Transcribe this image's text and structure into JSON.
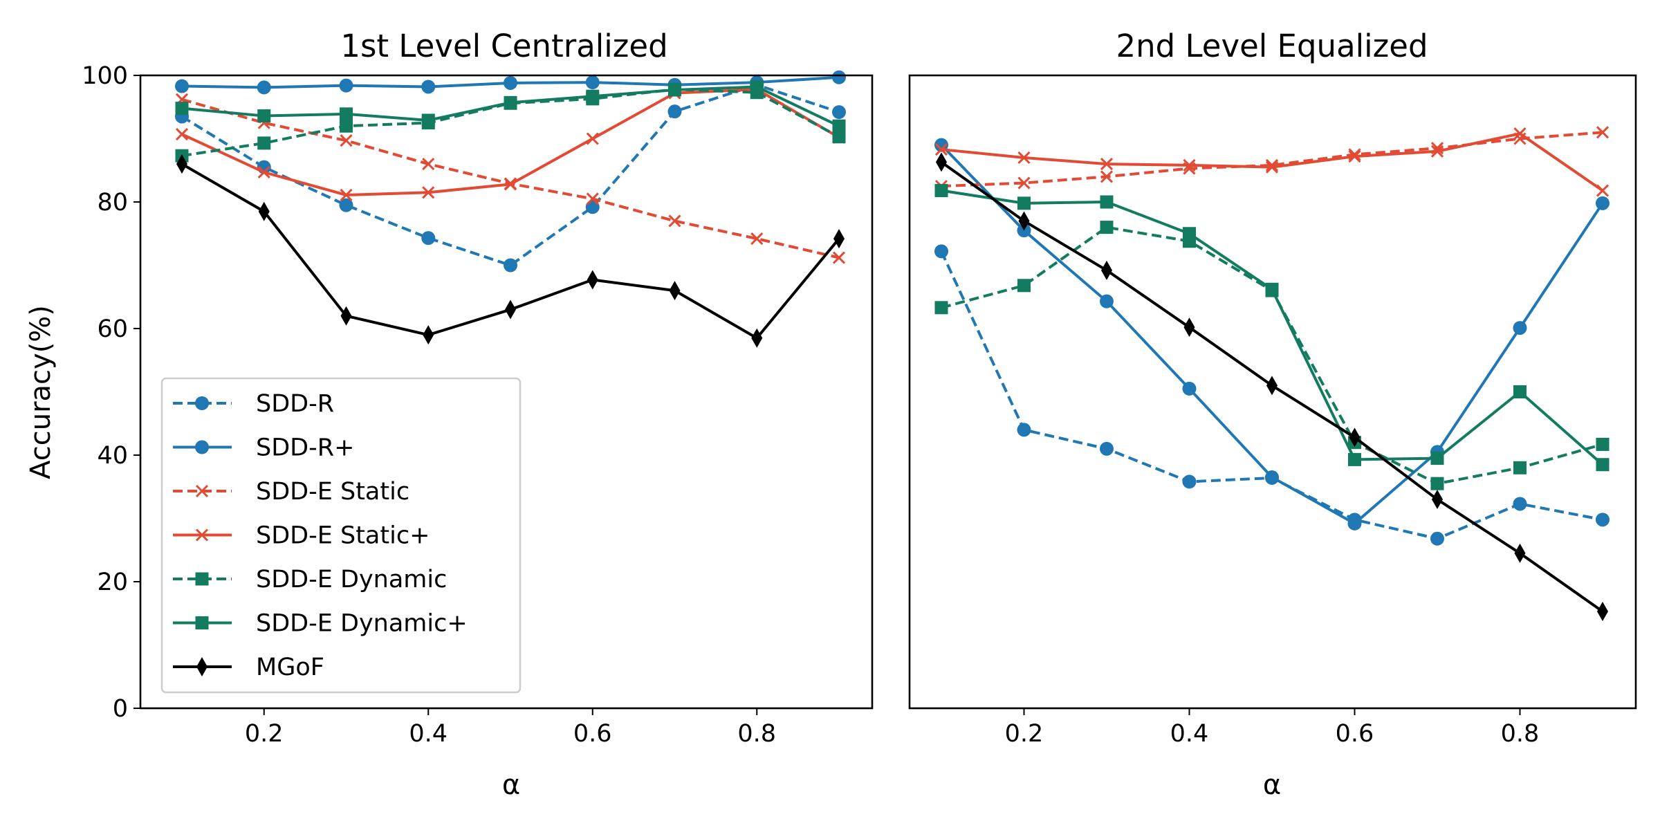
{
  "chart_data": [
    {
      "type": "line",
      "title": "1st Level Centralized",
      "xlabel": "α",
      "ylabel": "Accuracy(%)",
      "x": [
        0.1,
        0.2,
        0.3,
        0.4,
        0.5,
        0.6,
        0.7,
        0.8,
        0.9
      ],
      "xticks": [
        "0.2",
        "0.4",
        "0.6",
        "0.8"
      ],
      "yticks": [
        "0",
        "20",
        "40",
        "60",
        "80",
        "100"
      ],
      "ylim": [
        0,
        100
      ],
      "grid": false,
      "legend": "lower-left",
      "series": [
        {
          "name": "SDD-R",
          "color": "#1f77b4",
          "dash": "dashed",
          "marker": "circle",
          "values": [
            93.5,
            85.5,
            79.5,
            74.3,
            70.0,
            79.2,
            94.3,
            98.5,
            94.2
          ]
        },
        {
          "name": "SDD-R+",
          "color": "#1f77b4",
          "dash": "solid",
          "marker": "circle",
          "values": [
            98.3,
            98.1,
            98.4,
            98.2,
            98.8,
            98.9,
            98.5,
            98.9,
            99.7
          ]
        },
        {
          "name": "SDD-E Static",
          "color": "#e24a33",
          "dash": "dashed",
          "marker": "x",
          "values": [
            96.2,
            92.5,
            89.7,
            86.0,
            82.9,
            80.5,
            77.0,
            74.2,
            71.2
          ]
        },
        {
          "name": "SDD-E Static+",
          "color": "#e24a33",
          "dash": "solid",
          "marker": "x",
          "values": [
            90.7,
            84.7,
            81.1,
            81.5,
            82.8,
            90.0,
            97.2,
            97.8,
            90.2
          ]
        },
        {
          "name": "SDD-E Dynamic",
          "color": "#137b5f",
          "dash": "dashed",
          "marker": "square",
          "values": [
            87.3,
            89.3,
            92.0,
            92.5,
            95.6,
            96.3,
            97.8,
            97.3,
            90.3
          ]
        },
        {
          "name": "SDD-E Dynamic+",
          "color": "#137b5f",
          "dash": "solid",
          "marker": "square",
          "values": [
            94.8,
            93.6,
            93.9,
            92.9,
            95.7,
            96.7,
            97.7,
            98.2,
            92.0
          ]
        },
        {
          "name": "MGoF",
          "color": "#000000",
          "dash": "solid",
          "marker": "diamond",
          "values": [
            86.0,
            78.5,
            62.0,
            59.0,
            63.0,
            67.7,
            66.0,
            58.5,
            74.2
          ]
        }
      ]
    },
    {
      "type": "line",
      "title": "2nd Level Equalized",
      "xlabel": "α",
      "ylabel": "",
      "x": [
        0.1,
        0.2,
        0.3,
        0.4,
        0.5,
        0.6,
        0.7,
        0.8,
        0.9
      ],
      "xticks": [
        "0.2",
        "0.4",
        "0.6",
        "0.8"
      ],
      "ylim": [
        0,
        100
      ],
      "grid": false,
      "series": [
        {
          "name": "SDD-R",
          "color": "#1f77b4",
          "dash": "dashed",
          "marker": "circle",
          "values": [
            72.2,
            44.0,
            41.0,
            35.8,
            36.4,
            29.8,
            26.8,
            32.3,
            29.8
          ]
        },
        {
          "name": "SDD-R+",
          "color": "#1f77b4",
          "dash": "solid",
          "marker": "circle",
          "values": [
            89.0,
            75.5,
            64.3,
            50.5,
            36.5,
            29.2,
            40.5,
            60.1,
            79.8
          ]
        },
        {
          "name": "SDD-E Static",
          "color": "#e24a33",
          "dash": "dashed",
          "marker": "x",
          "values": [
            82.5,
            83.0,
            84.0,
            85.3,
            85.8,
            87.5,
            88.5,
            90.0,
            91.0
          ]
        },
        {
          "name": "SDD-E Static+",
          "color": "#e24a33",
          "dash": "solid",
          "marker": "x",
          "values": [
            88.3,
            87.0,
            86.0,
            85.8,
            85.5,
            87.2,
            88.0,
            90.8,
            81.8
          ]
        },
        {
          "name": "SDD-E Dynamic",
          "color": "#137b5f",
          "dash": "dashed",
          "marker": "square",
          "values": [
            63.3,
            66.8,
            76.0,
            73.8,
            66.0,
            42.0,
            35.5,
            38.0,
            41.7
          ]
        },
        {
          "name": "SDD-E Dynamic+",
          "color": "#137b5f",
          "dash": "solid",
          "marker": "square",
          "values": [
            81.8,
            79.8,
            80.0,
            75.0,
            66.2,
            39.3,
            39.5,
            50.0,
            38.5
          ]
        },
        {
          "name": "MGoF",
          "color": "#000000",
          "dash": "solid",
          "marker": "diamond",
          "values": [
            86.3,
            77.0,
            69.2,
            60.2,
            51.0,
            42.8,
            33.0,
            24.5,
            15.3
          ]
        }
      ]
    }
  ]
}
